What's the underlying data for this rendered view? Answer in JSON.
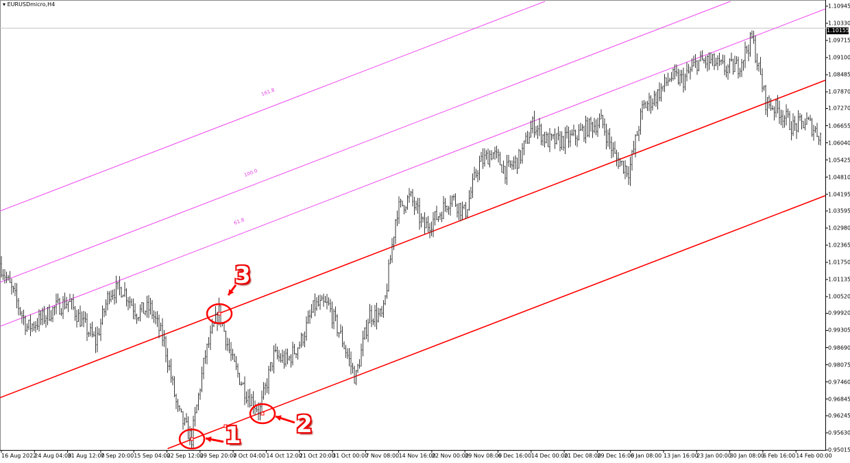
{
  "window": {
    "title": "EURUSDmicro,H4",
    "menu_icon": "triangle-down-icon"
  },
  "chart_data": {
    "type": "bar",
    "symbol": "EURUSDmicro",
    "timeframe": "H4",
    "ylim": [
      0.95015,
      1.10945
    ],
    "current_price": "1.10155",
    "y_ticks": [
      "1.10945",
      "1.10330",
      "1.09715",
      "1.09100",
      "1.08485",
      "1.07870",
      "1.07270",
      "1.06655",
      "1.06040",
      "1.05425",
      "1.04810",
      "1.04195",
      "1.03595",
      "1.02980",
      "1.02365",
      "1.01750",
      "1.01135",
      "1.00520",
      "0.99920",
      "0.99305",
      "0.98690",
      "0.98075",
      "0.97460",
      "0.96845",
      "0.96245",
      "0.95630",
      "0.95015"
    ],
    "x_ticks": [
      "16 Aug 2022",
      "24 Aug 04:00",
      "31 Aug 12:00",
      "7 Sep 20:00",
      "15 Sep 04:00",
      "22 Sep 12:00",
      "29 Sep 20:00",
      "7 Oct 04:00",
      "14 Oct 12:00",
      "21 Oct 20:00",
      "31 Oct 00:00",
      "7 Nov 08:00",
      "14 Nov 16:00",
      "22 Nov 00:00",
      "29 Nov 08:00",
      "6 Dec 16:00",
      "14 Dec 00:00",
      "21 Dec 08:00",
      "29 Dec 16:00",
      "6 Jan 08:00",
      "13 Jan 16:00",
      "23 Jan 00:00",
      "30 Jan 08:00",
      "6 Feb 16:00",
      "14 Feb 00:00"
    ],
    "close_sampled": [
      1.017,
      1.006,
      0.994,
      0.997,
      1.001,
      1.0035,
      0.996,
      0.989,
      1.007,
      1.008,
      0.9995,
      1.001,
      0.989,
      0.964,
      0.954,
      0.984,
      1.0,
      0.9817,
      0.9707,
      0.9642,
      0.984,
      0.982,
      0.989,
      1.002,
      1.002,
      0.99,
      0.9756,
      0.999,
      0.998,
      1.036,
      1.041,
      1.03,
      1.034,
      1.041,
      1.035,
      1.0526,
      1.057,
      1.0503,
      1.055,
      1.0674,
      1.061,
      1.061,
      1.0625,
      1.066,
      1.068,
      1.055,
      1.0503,
      1.073,
      1.0772,
      1.084,
      1.083,
      1.0895,
      1.0895,
      1.087,
      1.088,
      1.098,
      1.075,
      1.072,
      1.066,
      1.068,
      1.063
    ],
    "channel": {
      "color": "#ff0000",
      "pivots": [
        {
          "label": "1",
          "price": 0.954
        },
        {
          "label": "2",
          "price": 0.9626
        },
        {
          "label": "3",
          "price": 0.9992
        }
      ]
    },
    "fibo_levels": {
      "color": "#ee44ee",
      "labels": [
        "61.8",
        "100.0",
        "161.8"
      ]
    },
    "bar_color": "#333333"
  }
}
